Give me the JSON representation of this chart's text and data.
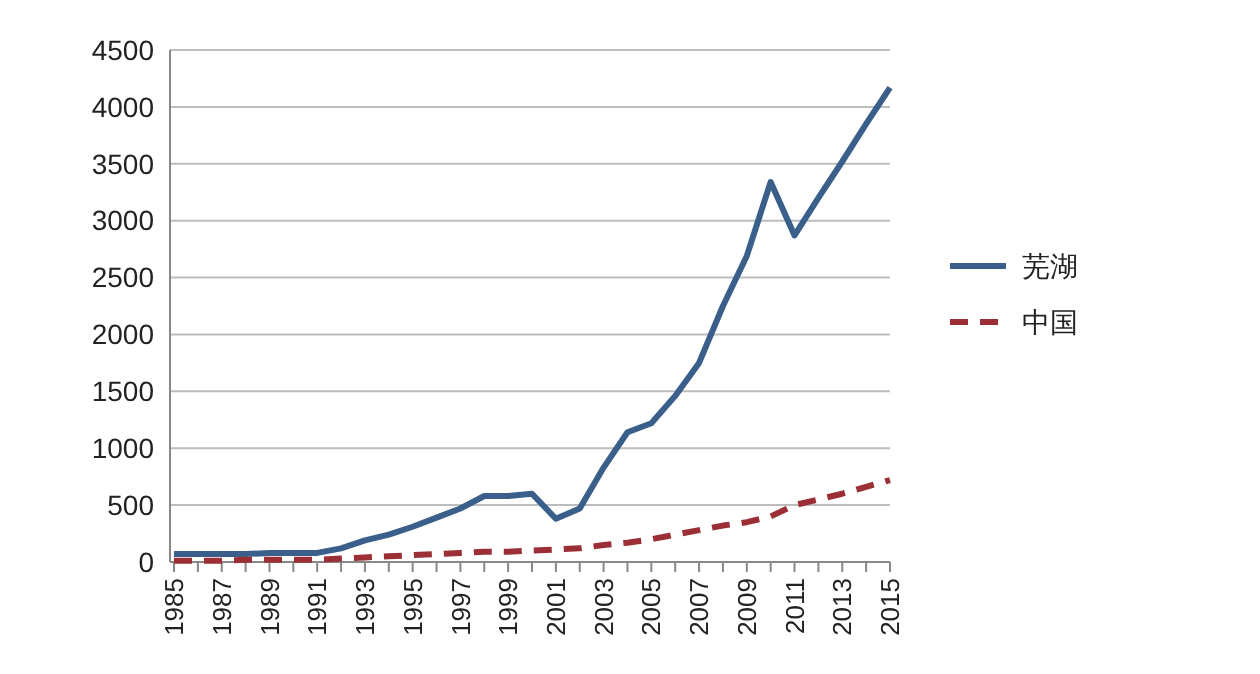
{
  "chart_data": {
    "type": "line",
    "categories": [
      "1985",
      null,
      "1987",
      null,
      "1989",
      null,
      "1991",
      null,
      "1993",
      null,
      "1995",
      null,
      "1997",
      null,
      "1999",
      null,
      "2001",
      null,
      "2003",
      null,
      "2005",
      null,
      "2007",
      null,
      "2009",
      null,
      "2011",
      null,
      "2013",
      null,
      "2015"
    ],
    "series": [
      {
        "name": "芜湖",
        "color": "#3a5f8a",
        "line_style": "solid",
        "values": [
          70,
          70,
          70,
          70,
          80,
          80,
          80,
          120,
          190,
          240,
          310,
          390,
          470,
          580,
          580,
          600,
          380,
          470,
          830,
          1140,
          1220,
          1460,
          1750,
          2250,
          2690,
          3340,
          2870,
          3200,
          3520,
          3850,
          4170
        ]
      },
      {
        "name": "中国",
        "color": "#9b2f35",
        "line_style": "dashed",
        "values": [
          10,
          10,
          10,
          20,
          20,
          20,
          20,
          30,
          40,
          50,
          60,
          70,
          80,
          90,
          90,
          100,
          110,
          120,
          150,
          170,
          200,
          240,
          280,
          320,
          350,
          400,
          500,
          550,
          600,
          660,
          720
        ]
      }
    ],
    "ylim": [
      0,
      4500
    ],
    "yticks": [
      0,
      500,
      1000,
      1500,
      2000,
      2500,
      3000,
      3500,
      4000,
      4500
    ],
    "grid": "y",
    "legend": "right",
    "marker": "none"
  }
}
